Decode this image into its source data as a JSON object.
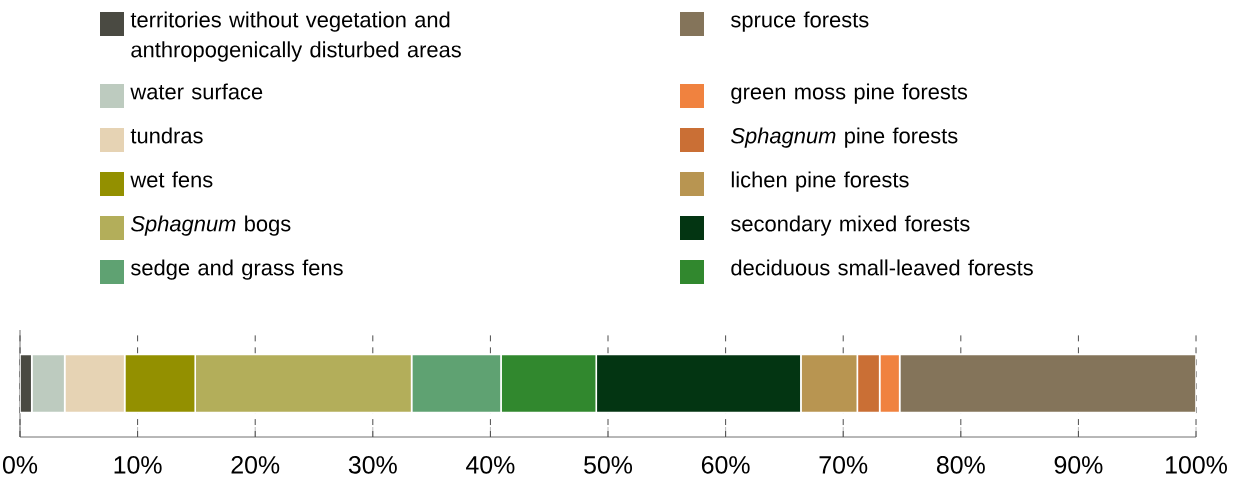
{
  "chart_data": {
    "type": "bar",
    "orientation": "horizontal",
    "stacked": true,
    "categories": [
      null
    ],
    "series": [
      {
        "name": "territories without vegetation and anthropogenically disturbed areas",
        "color": "#4a4a42",
        "values": [
          1.0
        ]
      },
      {
        "name": "water surface",
        "color": "#bdcbbf",
        "values": [
          2.8
        ]
      },
      {
        "name": "tundras",
        "color": "#e6d3b4",
        "values": [
          5.1
        ]
      },
      {
        "name": "wet fens",
        "color": "#939000",
        "values": [
          6.0
        ]
      },
      {
        "name": "*Sphagnum* bogs",
        "color": "#b3ae5a",
        "values": [
          18.4
        ]
      },
      {
        "name": "sedge and grass fens",
        "color": "#5fa272",
        "values": [
          7.6
        ]
      },
      {
        "name": "deciduous small-leaved forests",
        "color": "#31882e",
        "values": [
          8.1
        ]
      },
      {
        "name": "secondary mixed forests",
        "color": "#033512",
        "values": [
          17.4
        ]
      },
      {
        "name": "lichen pine forests",
        "color": "#b89551",
        "values": [
          4.8
        ]
      },
      {
        "name": "*Sphagnum* pine forests",
        "color": "#ca6f35",
        "values": [
          1.9
        ]
      },
      {
        "name": "green moss pine forests",
        "color": "#f0823f",
        "values": [
          1.7
        ]
      },
      {
        "name": "spruce forests",
        "color": "#84745a",
        "values": [
          25.2
        ]
      }
    ],
    "xlim": [
      0,
      100
    ],
    "xticks": [
      {
        "value": 0,
        "label": "0%"
      },
      {
        "value": 10,
        "label": "10%"
      },
      {
        "value": 20,
        "label": "20%"
      },
      {
        "value": 30,
        "label": "30%"
      },
      {
        "value": 40,
        "label": "40%"
      },
      {
        "value": 50,
        "label": "50%"
      },
      {
        "value": 60,
        "label": "60%"
      },
      {
        "value": 70,
        "label": "70%"
      },
      {
        "value": 80,
        "label": "80%"
      },
      {
        "value": 90,
        "label": "90%"
      },
      {
        "value": 100,
        "label": "100%"
      }
    ],
    "grid": "x",
    "legend": "top"
  }
}
